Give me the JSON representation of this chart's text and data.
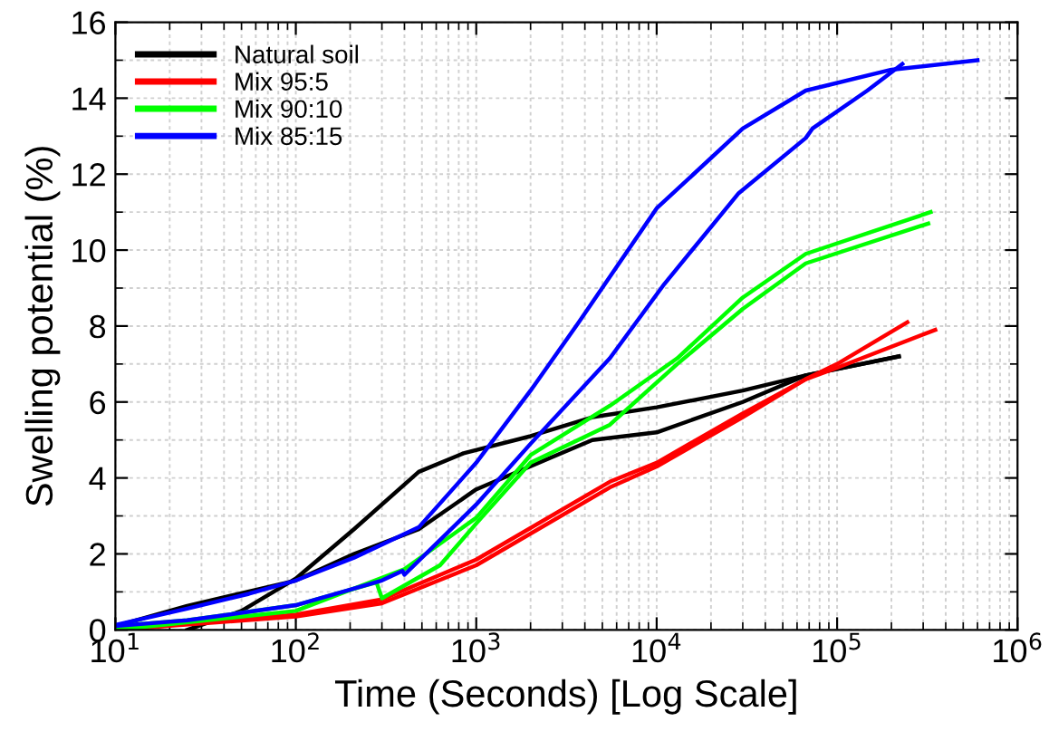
{
  "chart_data": {
    "type": "line",
    "xlabel": "Time (Seconds) [Log Scale]",
    "ylabel": "Swelling potential (%)",
    "log": "x",
    "grid": true,
    "legend": "top left",
    "line_style": "solid",
    "marker": "none",
    "xlim": [
      10,
      1000000
    ],
    "xticks": [
      {
        "value": 10,
        "label": "10$^{1}$"
      },
      {
        "value": 100,
        "label": "10$^{2}$"
      },
      {
        "value": 1000,
        "label": "10$^{3}$"
      },
      {
        "value": 10000,
        "label": "10$^{4}$"
      },
      {
        "value": 100000,
        "label": "10$^{5}$"
      },
      {
        "value": 1000000,
        "label": "10$^{6}$"
      }
    ],
    "ylim": [
      0,
      16
    ],
    "yticks": [
      0,
      2,
      4,
      6,
      8,
      10,
      12,
      14,
      16
    ],
    "series": [
      {
        "name": "Natural soil",
        "color": "#000000",
        "x": [
          25,
          50,
          100,
          210,
          480,
          850,
          2000,
          4400,
          10000,
          30000,
          67000,
          220000
        ],
        "values": [
          0,
          0.5,
          1.35,
          2.65,
          4.16,
          4.65,
          5.1,
          5.6,
          5.86,
          6.3,
          6.7,
          7.2
        ]
      },
      {
        "color": "#000000",
        "x": [
          10,
          25,
          100,
          210,
          480,
          1000,
          4400,
          10000,
          30000,
          67000,
          220000
        ],
        "values": [
          0.1,
          0.63,
          1.3,
          2.0,
          2.65,
          3.7,
          5.0,
          5.2,
          6.0,
          6.7,
          7.2
        ]
      },
      {
        "name": "Mix 95:5",
        "color": "#ff0000",
        "x": [
          10,
          100,
          300,
          1000,
          5500,
          10000,
          30000,
          67000,
          100000,
          245000
        ],
        "values": [
          0,
          0.4,
          0.8,
          1.85,
          3.9,
          4.4,
          5.7,
          6.6,
          7.0,
          8.1
        ]
      },
      {
        "color": "#ff0000",
        "x": [
          10,
          100,
          300,
          1000,
          5500,
          10000,
          30000,
          67000,
          100000,
          350000
        ],
        "values": [
          0,
          0.35,
          0.7,
          1.7,
          3.75,
          4.3,
          5.6,
          6.6,
          6.9,
          7.9
        ]
      },
      {
        "name": "Mix 90:10",
        "color": "#00ff00",
        "x": [
          10,
          25,
          100,
          280,
          300,
          630,
          1000,
          2000,
          5500,
          13000,
          30000,
          67000,
          320000
        ],
        "values": [
          0.1,
          0.25,
          0.65,
          1.25,
          0.83,
          1.7,
          2.8,
          4.4,
          5.4,
          7.0,
          8.45,
          9.65,
          10.7
        ]
      },
      {
        "color": "#00ff00",
        "x": [
          10,
          100,
          400,
          1000,
          2000,
          5500,
          13000,
          30000,
          67000,
          330000
        ],
        "values": [
          0,
          0.5,
          1.6,
          2.95,
          4.6,
          5.9,
          7.15,
          8.75,
          9.9,
          11.0
        ]
      },
      {
        "name": "Mix 85:15",
        "color": "#0000ff",
        "x": [
          10,
          25,
          55,
          100,
          210,
          480,
          1000,
          2000,
          3700,
          10000,
          30000,
          67000,
          200000,
          600000
        ],
        "values": [
          0.13,
          0.56,
          0.95,
          1.3,
          1.9,
          2.7,
          4.4,
          6.3,
          8.1,
          11.1,
          13.2,
          14.2,
          14.75,
          15.0
        ]
      },
      {
        "color": "#0000ff",
        "x": [
          10,
          25,
          100,
          300,
          390,
          400,
          1000,
          2000,
          5500,
          11000,
          28500,
          67000,
          73000,
          147000,
          230000
        ],
        "values": [
          0.1,
          0.25,
          0.65,
          1.3,
          1.55,
          1.45,
          3.3,
          4.9,
          7.15,
          9.1,
          11.5,
          12.95,
          13.2,
          14.2,
          14.9
        ]
      }
    ]
  }
}
